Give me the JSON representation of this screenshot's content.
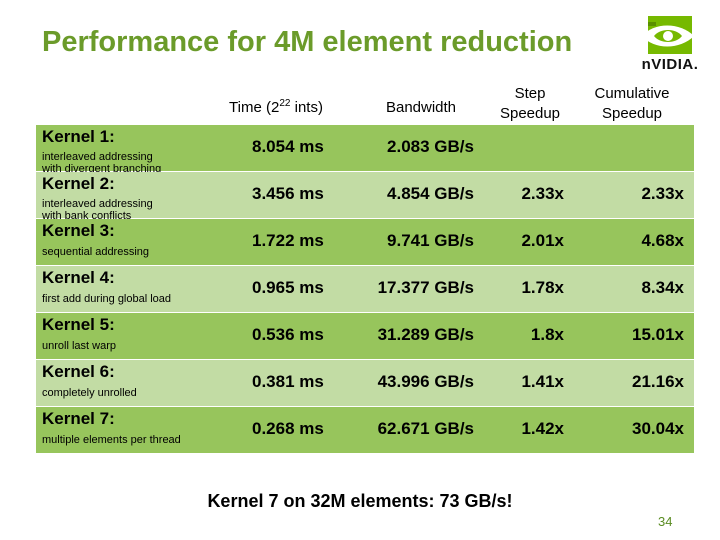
{
  "slide": {
    "title": "Performance for 4M element reduction",
    "logo_text": "nVIDIA.",
    "headers": {
      "time_prefix": "Time (2",
      "time_exp": "22",
      "time_suffix": " ints)",
      "bandwidth": "Bandwidth",
      "step": "Step Speedup",
      "cumulative": "Cumulative Speedup"
    },
    "rows": [
      {
        "name": "Kernel 1:",
        "desc": "interleaved addressing\nwith divergent branching",
        "time": "8.054 ms",
        "bandwidth": "2.083 GB/s",
        "step": "",
        "cumulative": ""
      },
      {
        "name": "Kernel 2:",
        "desc": "interleaved addressing\nwith bank conflicts",
        "time": "3.456 ms",
        "bandwidth": "4.854 GB/s",
        "step": "2.33x",
        "cumulative": "2.33x"
      },
      {
        "name": "Kernel 3:",
        "desc": "sequential addressing",
        "time": "1.722 ms",
        "bandwidth": "9.741 GB/s",
        "step": "2.01x",
        "cumulative": "4.68x"
      },
      {
        "name": "Kernel 4:",
        "desc": "first add during global load",
        "time": "0.965 ms",
        "bandwidth": "17.377 GB/s",
        "step": "1.78x",
        "cumulative": "8.34x"
      },
      {
        "name": "Kernel 5:",
        "desc": "unroll last warp",
        "time": "0.536 ms",
        "bandwidth": "31.289 GB/s",
        "step": "1.8x",
        "cumulative": "15.01x"
      },
      {
        "name": "Kernel 6:",
        "desc": "completely unrolled",
        "time": "0.381 ms",
        "bandwidth": "43.996 GB/s",
        "step": "1.41x",
        "cumulative": "21.16x"
      },
      {
        "name": "Kernel 7:",
        "desc": "multiple elements per thread",
        "time": "0.268 ms",
        "bandwidth": "62.671 GB/s",
        "step": "1.42x",
        "cumulative": "30.04x"
      }
    ],
    "footer": "Kernel 7 on 32M elements: 73 GB/s!",
    "page_number": "34",
    "colors": {
      "title": "#6b9b2a",
      "row_dark": "#97c55c",
      "row_light": "#c2dca4",
      "logo_green": "#76b900"
    }
  }
}
